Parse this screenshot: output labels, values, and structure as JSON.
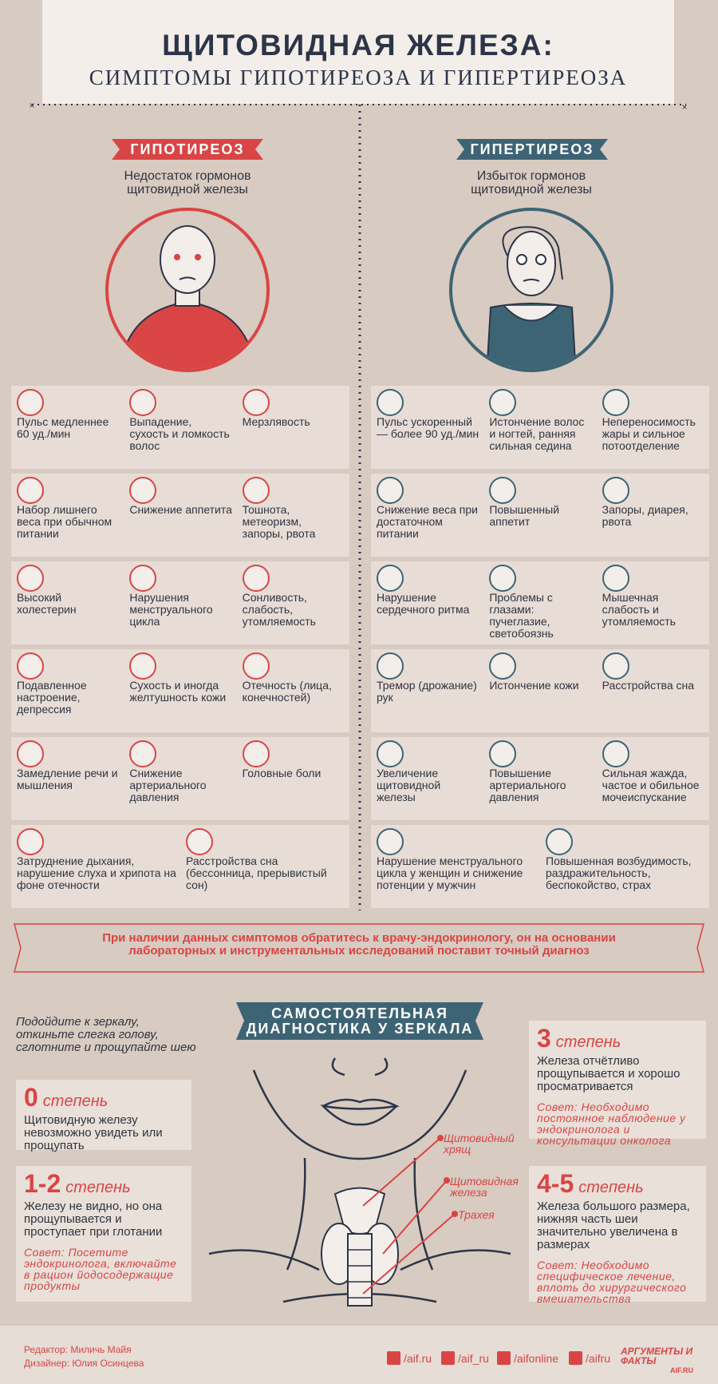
{
  "header": {
    "title": "ЩИТОВИДНАЯ ЖЕЛЕЗА:",
    "subtitle": "СИМПТОМЫ ГИПОТИРЕОЗА И ГИПЕРТИРЕОЗА"
  },
  "hypothyroidism": {
    "label": "ГИПОТИРЕОЗ",
    "description": "Недостаток гормонов щитовидной железы",
    "symptoms": [
      "Пульс медленнее 60 уд./мин",
      "Выпадение, сухость и ломкость волос",
      "Мерзлявость",
      "Набор лишнего веса при обычном питании",
      "Снижение аппетита",
      "Тошнота, метеоризм, запоры, рвота",
      "Высокий холестерин",
      "Нарушения менструального цикла",
      "Сонливость, слабость, утомляемость",
      "Подавленное настроение, депрессия",
      "Сухость и иногда желтушность кожи",
      "Отечность (лица, конечностей)",
      "Замедление речи и мышления",
      "Снижение артериального давления",
      "Головные боли",
      "Затруднение дыхания, нарушение слуха и хрипота на фоне отечности",
      "Расстройства сна (бессонница, прерывистый сон)"
    ]
  },
  "hyperthyroidism": {
    "label": "ГИПЕРТИРЕОЗ",
    "description": "Избыток гормонов щитовидной железы",
    "symptoms": [
      "Пульс ускоренный — более 90 уд./мин",
      "Истончение волос и ногтей, ранняя сильная седина",
      "Непереносимость жары и сильное потоотделение",
      "Снижение веса при достаточном питании",
      "Повышенный аппетит",
      "Запоры, диарея, рвота",
      "Нарушение сердечного ритма",
      "Проблемы с глазами: пучеглазие, светобоязнь",
      "Мышечная слабость и утомляемость",
      "Тремор (дрожание) рук",
      "Истончение кожи",
      "Расстройства сна",
      "Увеличение щитовидной железы",
      "Повышение артериального давления",
      "Сильная жажда, частое и обильное мочеиспускание",
      "Нарушение менструального цикла у женщин и снижение потенции у мужчин",
      "Повышенная возбудимость, раздражительность, беспокойство, страх"
    ]
  },
  "notice": "При наличии данных симптомов обратитесь к врачу-эндокринологу, он на основании лабораторных и инструментальных исследований поставит точный диагноз",
  "self_check": {
    "title": "САМОСТОЯТЕЛЬНАЯ ДИАГНОСТИКА У ЗЕРКАЛА",
    "intro": "Подойдите к зеркалу, откиньте слегка голову, сглотните и прощупайте шею",
    "degrees": [
      {
        "number": "0",
        "label": "степень",
        "text": "Щитовидную железу невозможно увидеть или прощупать"
      },
      {
        "number": "1-2",
        "label": "степень",
        "text": "Железу не видно, но она прощупывается и проступает при глотании",
        "advice": "Совет: Посетите эндокринолога, включайте в рацион йодосодержащие продукты"
      },
      {
        "number": "3",
        "label": "степень",
        "text": "Железа отчётливо прощупывается и хорошо просматривается",
        "advice": "Совет: Необходимо постоянное наблюдение у эндокринолога и консультации онколога"
      },
      {
        "number": "4-5",
        "label": "степень",
        "text": "Железа большого размера, нижняя часть шеи значительно увеличена в размерах",
        "advice": "Совет: Необходимо специфическое лечение, вплоть до хирургического вмешательства"
      }
    ],
    "anatomy": [
      "Щитовидный хрящ",
      "Щитовидная железа",
      "Трахея"
    ]
  },
  "footer": {
    "credits": [
      "Редактор:  Миличь Майя",
      "Дизайнер: Юлия Осинцева"
    ],
    "social": [
      "/aif.ru",
      "/aif_ru",
      "/aifonline",
      "/aifru"
    ],
    "logo": [
      "АРГУМЕНТЫ И ФАКТЫ",
      "AIF.RU"
    ]
  }
}
